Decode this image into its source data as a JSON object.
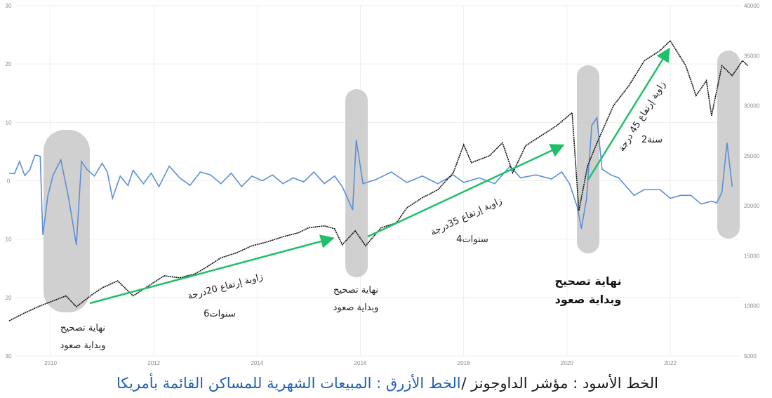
{
  "chart_data": {
    "type": "line",
    "left_axis": {
      "ticks": [
        "30",
        "20",
        "10",
        "0",
        "10",
        "20",
        "30"
      ],
      "ylim": [
        -30,
        30
      ]
    },
    "right_axis": {
      "ticks": [
        "40000",
        "35000",
        "30000",
        "25000",
        "20000",
        "15000",
        "10000",
        "5000"
      ],
      "ylim": [
        5000,
        40000
      ]
    },
    "x_axis": {
      "ticks": [
        "2010",
        "2012",
        "2014",
        "2016",
        "2018",
        "2020",
        "2022"
      ],
      "xlim": [
        2009.2,
        2023.5
      ]
    },
    "grid": true,
    "series": [
      {
        "name": "مؤشر الداوجونز",
        "color": "#111111",
        "axis": "right",
        "points": [
          [
            2009.2,
            8500
          ],
          [
            2009.5,
            9300
          ],
          [
            2009.8,
            10000
          ],
          [
            2010.0,
            10400
          ],
          [
            2010.3,
            11000
          ],
          [
            2010.5,
            9900
          ],
          [
            2010.8,
            11100
          ],
          [
            2011.0,
            11800
          ],
          [
            2011.3,
            12500
          ],
          [
            2011.6,
            11000
          ],
          [
            2011.9,
            12000
          ],
          [
            2012.2,
            13000
          ],
          [
            2012.5,
            12800
          ],
          [
            2012.8,
            13200
          ],
          [
            2013.0,
            13800
          ],
          [
            2013.3,
            14800
          ],
          [
            2013.6,
            15300
          ],
          [
            2013.9,
            16000
          ],
          [
            2014.2,
            16400
          ],
          [
            2014.5,
            16900
          ],
          [
            2014.8,
            17300
          ],
          [
            2015.0,
            17800
          ],
          [
            2015.3,
            18000
          ],
          [
            2015.5,
            17700
          ],
          [
            2015.65,
            16100
          ],
          [
            2015.9,
            17500
          ],
          [
            2016.1,
            16000
          ],
          [
            2016.4,
            17800
          ],
          [
            2016.7,
            18300
          ],
          [
            2016.9,
            19800
          ],
          [
            2017.2,
            20800
          ],
          [
            2017.5,
            21600
          ],
          [
            2017.8,
            23300
          ],
          [
            2018.0,
            26100
          ],
          [
            2018.15,
            24300
          ],
          [
            2018.5,
            25000
          ],
          [
            2018.75,
            26300
          ],
          [
            2018.95,
            23300
          ],
          [
            2019.2,
            26000
          ],
          [
            2019.5,
            27000
          ],
          [
            2019.8,
            28000
          ],
          [
            2020.1,
            29300
          ],
          [
            2020.23,
            19500
          ],
          [
            2020.4,
            24000
          ],
          [
            2020.6,
            26500
          ],
          [
            2020.9,
            30000
          ],
          [
            2021.2,
            32000
          ],
          [
            2021.5,
            34500
          ],
          [
            2021.8,
            35500
          ],
          [
            2022.0,
            36500
          ],
          [
            2022.3,
            34000
          ],
          [
            2022.5,
            31000
          ],
          [
            2022.7,
            32500
          ],
          [
            2022.8,
            29000
          ],
          [
            2023.0,
            34000
          ],
          [
            2023.2,
            33000
          ],
          [
            2023.4,
            34500
          ],
          [
            2023.5,
            34000
          ]
        ]
      },
      {
        "name": "المبيعات الشهرية للمساكن القائمة بأمريكا",
        "color": "#5b8fd6",
        "axis": "left",
        "points": [
          [
            2009.2,
            1.3
          ],
          [
            2009.3,
            1.2
          ],
          [
            2009.4,
            3.3
          ],
          [
            2009.5,
            0.9
          ],
          [
            2009.6,
            1.9
          ],
          [
            2009.7,
            4.4
          ],
          [
            2009.8,
            4.2
          ],
          [
            2009.85,
            -9.3
          ],
          [
            2009.95,
            -2.5
          ],
          [
            2010.05,
            1.0
          ],
          [
            2010.2,
            3.6
          ],
          [
            2010.35,
            -3.0
          ],
          [
            2010.5,
            -11.0
          ],
          [
            2010.6,
            3.3
          ],
          [
            2010.7,
            2.0
          ],
          [
            2010.85,
            0.8
          ],
          [
            2011.0,
            3.0
          ],
          [
            2011.1,
            1.5
          ],
          [
            2011.2,
            -3.0
          ],
          [
            2011.35,
            0.8
          ],
          [
            2011.5,
            -0.8
          ],
          [
            2011.6,
            1.8
          ],
          [
            2011.8,
            -0.5
          ],
          [
            2011.95,
            1.3
          ],
          [
            2012.1,
            -1.0
          ],
          [
            2012.3,
            2.5
          ],
          [
            2012.5,
            0.5
          ],
          [
            2012.7,
            -0.8
          ],
          [
            2012.9,
            1.5
          ],
          [
            2013.1,
            1.0
          ],
          [
            2013.3,
            -0.5
          ],
          [
            2013.5,
            1.3
          ],
          [
            2013.7,
            -1.0
          ],
          [
            2013.9,
            0.8
          ],
          [
            2014.1,
            0.0
          ],
          [
            2014.3,
            1.0
          ],
          [
            2014.5,
            -0.5
          ],
          [
            2014.7,
            0.5
          ],
          [
            2014.9,
            -0.2
          ],
          [
            2015.1,
            1.5
          ],
          [
            2015.3,
            -0.5
          ],
          [
            2015.5,
            0.8
          ],
          [
            2015.65,
            -1.0
          ],
          [
            2015.75,
            -3.0
          ],
          [
            2015.85,
            -5.0
          ],
          [
            2015.92,
            7.0
          ],
          [
            2016.05,
            -0.5
          ],
          [
            2016.3,
            0.2
          ],
          [
            2016.6,
            1.5
          ],
          [
            2016.9,
            -0.3
          ],
          [
            2017.2,
            0.8
          ],
          [
            2017.5,
            -0.5
          ],
          [
            2017.8,
            1.0
          ],
          [
            2018.0,
            -0.3
          ],
          [
            2018.3,
            0.5
          ],
          [
            2018.6,
            -0.5
          ],
          [
            2018.9,
            2.5
          ],
          [
            2019.1,
            0.5
          ],
          [
            2019.4,
            1.0
          ],
          [
            2019.7,
            0.3
          ],
          [
            2019.9,
            1.5
          ],
          [
            2020.05,
            -0.5
          ],
          [
            2020.2,
            -4.5
          ],
          [
            2020.28,
            -8.2
          ],
          [
            2020.38,
            -3.0
          ],
          [
            2020.48,
            9.5
          ],
          [
            2020.58,
            10.8
          ],
          [
            2020.68,
            2.0
          ],
          [
            2020.85,
            1.0
          ],
          [
            2021.0,
            0.5
          ],
          [
            2021.3,
            -2.5
          ],
          [
            2021.5,
            -1.5
          ],
          [
            2021.8,
            -1.5
          ],
          [
            2022.0,
            -3.0
          ],
          [
            2022.2,
            -2.5
          ],
          [
            2022.4,
            -2.5
          ],
          [
            2022.6,
            -4.0
          ],
          [
            2022.8,
            -3.5
          ],
          [
            2022.9,
            -3.8
          ],
          [
            2023.0,
            -2.0
          ],
          [
            2023.1,
            6.5
          ],
          [
            2023.2,
            -1.0
          ]
        ]
      }
    ],
    "annotations": {
      "correction_1": {
        "line1": "نهاية تصحيح",
        "line2": "وبداية صعود"
      },
      "correction_2": {
        "line1": "نهاية تصحيح",
        "line2": "وبداية صعود"
      },
      "correction_3": {
        "line1": "نهاية تصحيح",
        "line2": "وبداية صعود"
      },
      "trend_1": {
        "angle": "زاوية إرتفاع 20درجة",
        "years": "سنوات6"
      },
      "trend_2": {
        "angle": "زاوية إرتفاع 35درجة",
        "years": "سنوات4"
      },
      "trend_3": {
        "angle": "زاوية إرتفاع 45 درجة",
        "years": "سنة2"
      }
    },
    "colors": {
      "highlight": "#c8c8c8",
      "trend_arrow": "#20c06a",
      "grid": "#eeeeee"
    }
  },
  "caption": {
    "black_part": "الخط الأسود : مؤشر الداوجونز /",
    "blue_part": "الخط الأزرق : المبيعات الشهرية للمساكن القائمة بأمريكا",
    "black_color": "#1a1a1a",
    "blue_color": "#1f5fb5"
  }
}
